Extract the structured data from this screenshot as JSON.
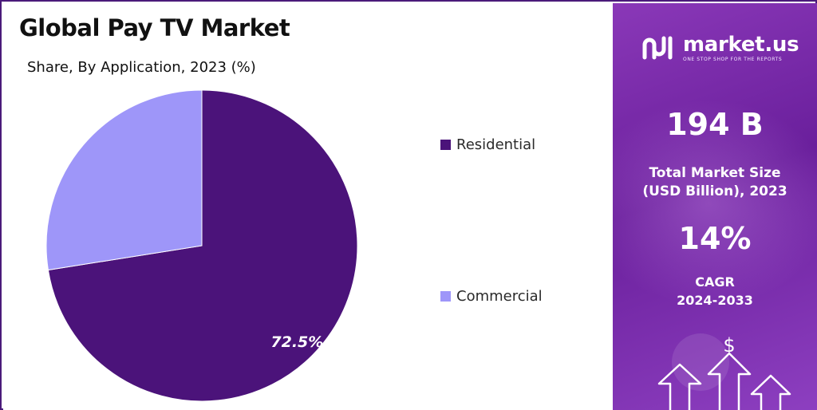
{
  "header": {
    "title": "Global Pay TV Market",
    "subtitle": "Share, By Application, 2023 (%)"
  },
  "chart_data": {
    "type": "pie",
    "title": "Global Pay TV Market",
    "subtitle": "Share, By Application, 2023 (%)",
    "slices": [
      {
        "label": "Residential",
        "value": 72.5,
        "color": "#4b137a",
        "data_label": "72.5%"
      },
      {
        "label": "Commercial",
        "value": 27.5,
        "color": "#9e96f9",
        "data_label": ""
      }
    ],
    "legend_position": "right"
  },
  "legend": {
    "items": [
      {
        "label": "Residential",
        "color": "#4b137a"
      },
      {
        "label": "Commercial",
        "color": "#9e96f9"
      }
    ]
  },
  "side_panel": {
    "brand": {
      "name": "market.us",
      "tagline": "ONE STOP SHOP FOR THE REPORTS",
      "icon": "market-us-logo-icon"
    },
    "market_size": {
      "value": "194 B",
      "label_line1": "Total Market Size",
      "label_line2": "(USD Billion), 2023"
    },
    "cagr": {
      "value": "14%",
      "label_line1": "CAGR",
      "label_line2": "2024-2033"
    },
    "decoration_icon": "dollar-arrows-icon",
    "decoration_symbol": "$",
    "colors": {
      "panel": "#7a2bab",
      "text": "#ffffff"
    }
  }
}
